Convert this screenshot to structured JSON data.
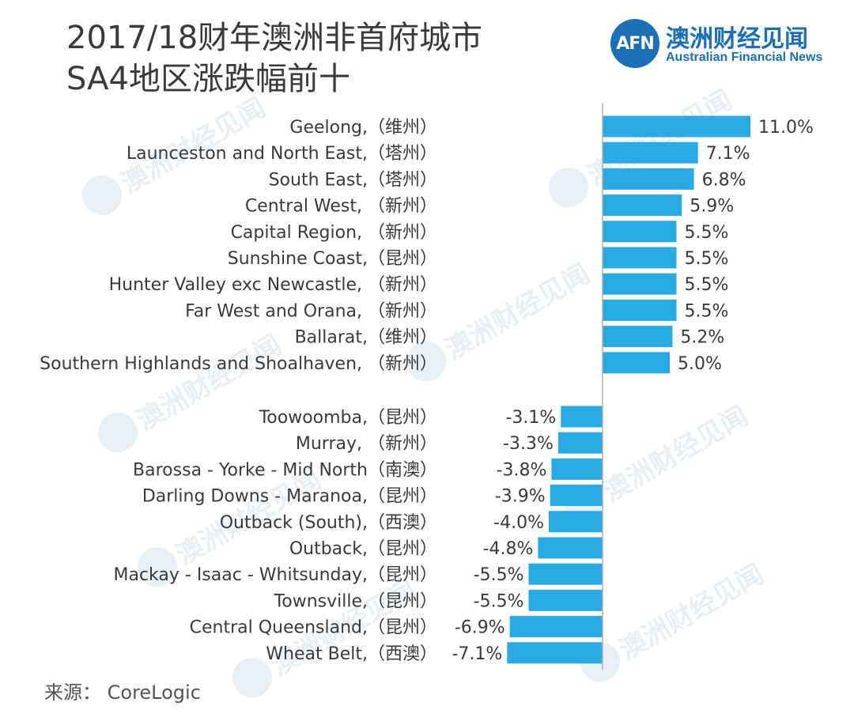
{
  "title_line1": "2017/18财年澳洲非首府城市",
  "title_line2": "SA4地区涨跌幅前十",
  "logo": {
    "mark": "AFN",
    "name_cn": "澳洲财经见闻",
    "name_en": "Australian Financial News"
  },
  "source": "来源： CoreLogic",
  "colors": {
    "bar": "#29aae3",
    "axis": "#b0b0b0",
    "text": "#3a3a3a"
  },
  "chart_data": {
    "type": "bar",
    "orientation": "horizontal",
    "title": "2017/18财年澳洲非首府城市SA4地区涨跌幅前十",
    "unit": "%",
    "groups": [
      {
        "name": "top",
        "categories": [
          "Geelong,（维州）",
          "Launceston and North East,（塔州）",
          "South East,（塔州）",
          "Central West, （新州）",
          "Capital Region, （新州）",
          "Sunshine Coast,（昆州）",
          "Hunter Valley exc Newcastle, （新州）",
          "Far West and Orana, （新州）",
          "Ballarat,（维州）",
          "Southern Highlands and Shoalhaven, （新州）"
        ],
        "values": [
          11.0,
          7.1,
          6.8,
          5.9,
          5.5,
          5.5,
          5.5,
          5.5,
          5.2,
          5.0
        ],
        "labels": [
          "11.0%",
          "7.1%",
          "6.8%",
          "5.9%",
          "5.5%",
          "5.5%",
          "5.5%",
          "5.5%",
          "5.2%",
          "5.0%"
        ]
      },
      {
        "name": "bottom",
        "categories": [
          "Toowoomba,（昆州）",
          "Murray, （新州）",
          "Barossa - Yorke - Mid North（南澳）",
          "Darling Downs - Maranoa,（昆州）",
          "Outback (South),（西澳）",
          "Outback,（昆州）",
          "Mackay - Isaac - Whitsunday,（昆州）",
          "Townsville,（昆州）",
          "Central Queensland,（昆州）",
          "Wheat Belt,（西澳）"
        ],
        "values": [
          -3.1,
          -3.3,
          -3.8,
          -3.9,
          -4.0,
          -4.8,
          -5.5,
          -5.5,
          -6.9,
          -7.1
        ],
        "labels": [
          "-3.1%",
          "-3.3%",
          "-3.8%",
          "-3.9%",
          "-4.0%",
          "-4.8%",
          "-5.5%",
          "-5.5%",
          "-6.9%",
          "-7.1%"
        ]
      }
    ]
  }
}
